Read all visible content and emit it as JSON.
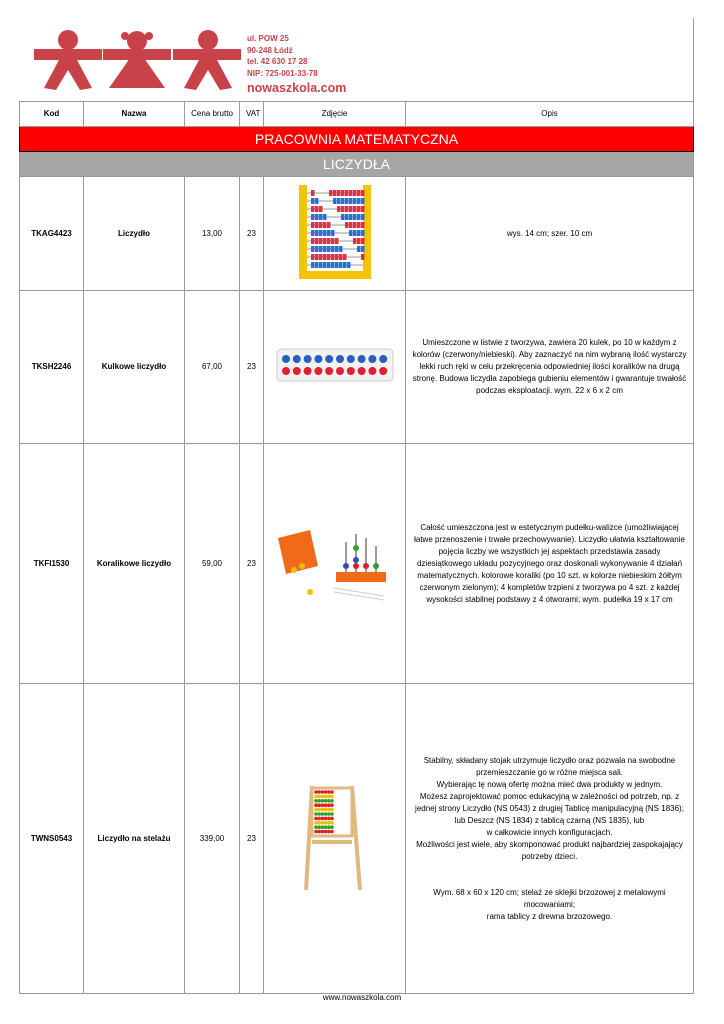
{
  "header": {
    "address": [
      "ul. POW 25",
      "90-248 Łódź",
      "tel. 42 630 17 28",
      "NIP: 725-001-33-78"
    ],
    "website": "nowaszkola.com",
    "logo_color": "#c8424a"
  },
  "columns": {
    "kod": "Kod",
    "nazwa": "Nazwa",
    "cena": "Cena brutto",
    "vat": "VAT",
    "zdjecie": "Zdjęcie",
    "opis": "Opis"
  },
  "section": "PRACOWNIA MATEMATYCZNA",
  "category": "LICZYDŁA",
  "rows": [
    {
      "kod": "TKAG4423",
      "nazwa": "Liczydło",
      "cena": "13,00",
      "vat": "23",
      "opis": "wys. 14 cm; szer. 10 cm"
    },
    {
      "kod": "TKSH2246",
      "nazwa": "Kulkowe liczydło",
      "cena": "67,00",
      "vat": "23",
      "opis": "Umieszczone w listwie z tworzywa, zawiera 20 kulek, po 10 w każdym z kolorów (czerwony/niebieski). Aby zaznaczyć na nim wybraną ilość wystarczy lekki ruch ręki w celu przekręcenia odpowiedniej ilości koralików na drugą stronę. Budowa liczydła zapobiega gubieniu elementów i gwarantuje trwałość podczas eksploatacji. wym. 22 x 6 x 2 cm"
    },
    {
      "kod": "TKFI1530",
      "nazwa": "Koralikowe liczydło",
      "cena": "59,00",
      "vat": "23",
      "opis": "Całość umieszczona jest w estetycznym pudełku-walizce (umożliwiającej łatwe przenoszenie i trwałe przechowywanie). Liczydło ułatwia kształtowanie pojęcia liczby we wszystkich jej aspektach przedstawia zasady dziesiątkowego układu pozycyjnego oraz doskonali wykonywanie 4 działań matematycznych. kolorowe koraliki (po 10 szt. w kolorze niebieskim żółtym czerwonym zielonym); 4 kompletów trzpieni z tworzywa po 4 szt. z każdej wysokości stabilnej podstawy z 4 otworami; wym. pudełka 19 x 17 cm"
    },
    {
      "kod": "TWNS0543",
      "nazwa": "Liczydło na stelażu",
      "cena": "339,00",
      "vat": "23",
      "opis_lines": [
        "Stabilny, składany stojak utrzymuje liczydło oraz pozwala na swobodne przemieszczanie go w różne miejsca sali.",
        "Wybierając tę nową ofertę można mieć dwa produkty w jednym.",
        "Możesz zaprojektować pomoc edukacyjną w zależności od potrzeb, np. z jednej strony Liczydło (NS 0543) z drugiej Tablicę manipulacyjną (NS 1836); lub Deszcz (NS 1834) z tablicą czarną (NS 1835), lub",
        "w całkowicie innych konfiguracjach.",
        "Możliwości jest wiele, aby skomponować produkt najbardziej zaspokajający potrzeby dzieci.",
        "",
        "Wym. 68 x 60 x 120 cm; stelaż ze sklejki brzozowej z metalowymi mocowaniami;",
        "rama tablicy z drewna brzozowego."
      ]
    }
  ],
  "footer": "www.nowaszkola.com"
}
